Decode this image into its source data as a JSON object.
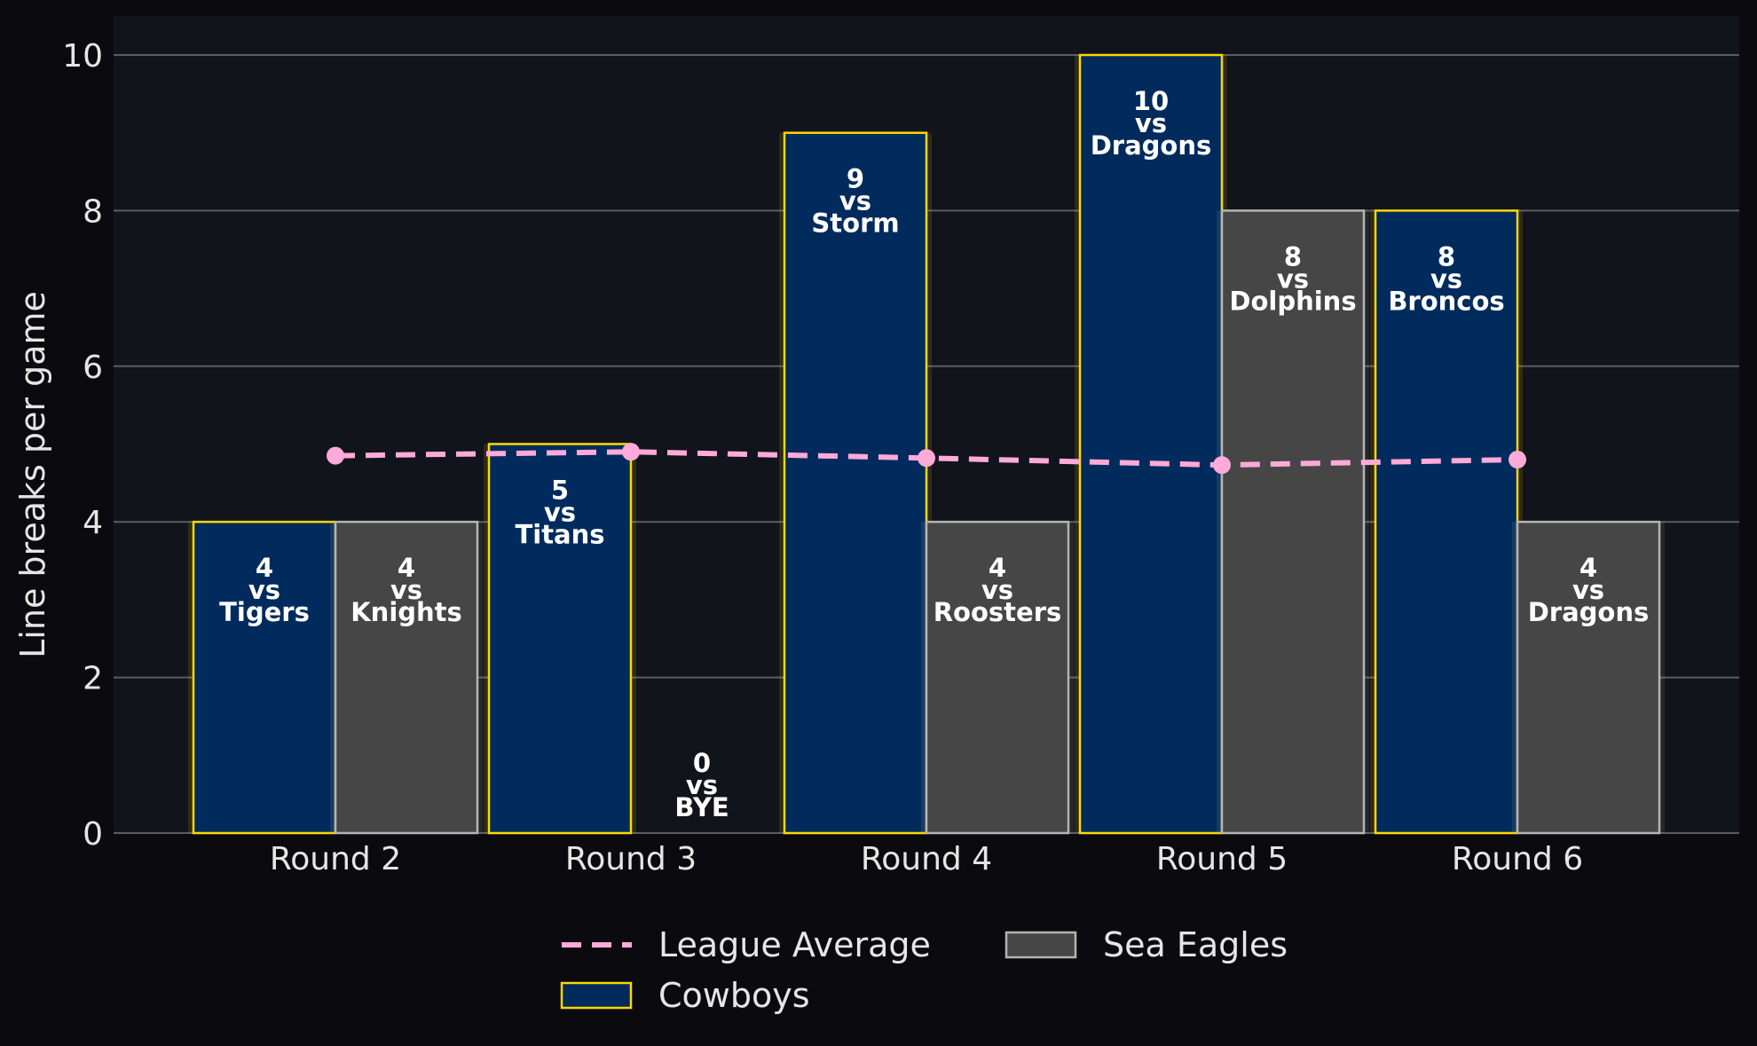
{
  "chart_data": {
    "type": "bar",
    "categories": [
      "Round 2",
      "Round 3",
      "Round 4",
      "Round 5",
      "Round 6"
    ],
    "ylabel": "Line breaks per game",
    "xlabel": "",
    "ylim": [
      0,
      10.5
    ],
    "yticks": [
      0,
      2,
      4,
      6,
      8,
      10
    ],
    "grid": true,
    "legend_position": "bottom",
    "series": [
      {
        "name": "Cowboys",
        "values": [
          4,
          5,
          9,
          10,
          8
        ],
        "labels": [
          "4\nvs\nTigers",
          "5\nvs\nTitans",
          "9\nvs\nStorm",
          "10\nvs\nDragons",
          "8\nvs\nBroncos"
        ],
        "color": "#002b5c",
        "edge_color": "#ffd700"
      },
      {
        "name": "Sea Eagles",
        "values": [
          4,
          0,
          4,
          8,
          4
        ],
        "labels": [
          "4\nvs\nKnights",
          "0\nvs\nBYE",
          "4\nvs\nRoosters",
          "8\nvs\nDolphins",
          "4\nvs\nDragons"
        ],
        "color": "#464646",
        "edge_color": "#b4b4b4"
      }
    ],
    "line": {
      "name": "League Average",
      "values": [
        4.85,
        4.9,
        4.82,
        4.73,
        4.8
      ],
      "color": "#ffaad8"
    }
  }
}
